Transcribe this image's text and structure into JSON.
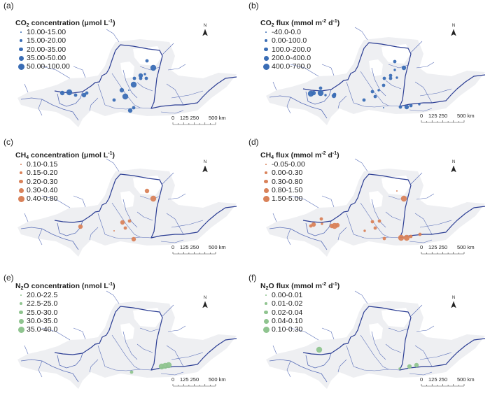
{
  "panels": [
    {
      "label": "(a)",
      "color": "#3a6db5",
      "title": [
        {
          "t": "CO"
        },
        {
          "t": "2",
          "s": "sub"
        },
        {
          "t": " concentration (μmol L"
        },
        {
          "t": "-1",
          "s": "sup"
        },
        {
          "t": ")"
        }
      ],
      "classes": [
        "10.00-15.00",
        "15.00-20.00",
        "20.00-35.00",
        "35.00-50.00",
        "50.00-100.00"
      ]
    },
    {
      "label": "(b)",
      "color": "#3a6db5",
      "title": [
        {
          "t": "CO"
        },
        {
          "t": "2",
          "s": "sub"
        },
        {
          "t": " flux (mmol m"
        },
        {
          "t": "-2",
          "s": "sup"
        },
        {
          "t": " d"
        },
        {
          "t": "-1",
          "s": "sup"
        },
        {
          "t": ")"
        }
      ],
      "classes": [
        "-40.0-0.0",
        "0.00-100.0",
        "100.0-200.0",
        "200.0-400.0",
        "400.0-700.0"
      ]
    },
    {
      "label": "(c)",
      "color": "#d9825a",
      "title": [
        {
          "t": "CH"
        },
        {
          "t": "4",
          "s": "sub"
        },
        {
          "t": " concentration (μmol L"
        },
        {
          "t": "-1",
          "s": "sup"
        },
        {
          "t": ")"
        }
      ],
      "classes": [
        "0.10-0.15",
        "0.15-0.20",
        "0.20-0.30",
        "0.30-0.40",
        "0.40-0.80"
      ]
    },
    {
      "label": "(d)",
      "color": "#d9825a",
      "title": [
        {
          "t": "CH"
        },
        {
          "t": "4",
          "s": "sub"
        },
        {
          "t": " flux (mmol m"
        },
        {
          "t": "-2",
          "s": "sup"
        },
        {
          "t": " d"
        },
        {
          "t": "-1",
          "s": "sup"
        },
        {
          "t": ")"
        }
      ],
      "classes": [
        "-0.05-0.00",
        "0.00-0.30",
        "0.30-0.80",
        "0.80-1.50",
        "1.50-5.00"
      ]
    },
    {
      "label": "(e)",
      "color": "#8fc48f",
      "title": [
        {
          "t": "N"
        },
        {
          "t": "2",
          "s": "sub"
        },
        {
          "t": "O concentration (nmol L"
        },
        {
          "t": "-1",
          "s": "sup"
        },
        {
          "t": ")"
        }
      ],
      "classes": [
        "20.0-22.5",
        "22.5-25.0",
        "25.0-30.0",
        "30.0-35.0",
        "35.0-40.0"
      ]
    },
    {
      "label": "(f)",
      "color": "#8fc48f",
      "title": [
        {
          "t": "N"
        },
        {
          "t": "2",
          "s": "sub"
        },
        {
          "t": "O flux (mmol m"
        },
        {
          "t": "-2",
          "s": "sup"
        },
        {
          "t": " d"
        },
        {
          "t": "-1",
          "s": "sup"
        },
        {
          "t": ")"
        }
      ],
      "classes": [
        "0.00-0.01",
        "0.01-0.02",
        "0.02-0.04",
        "0.04-0.10",
        "0.10-0.30"
      ]
    }
  ],
  "north_label": "N",
  "scale_bar": {
    "t0": "0",
    "t1": "125 250",
    "t2": "500 km"
  },
  "colors": {
    "basin": "#eeeff2",
    "river": "#2c3e94",
    "tributary": "#5a6fb8"
  }
}
